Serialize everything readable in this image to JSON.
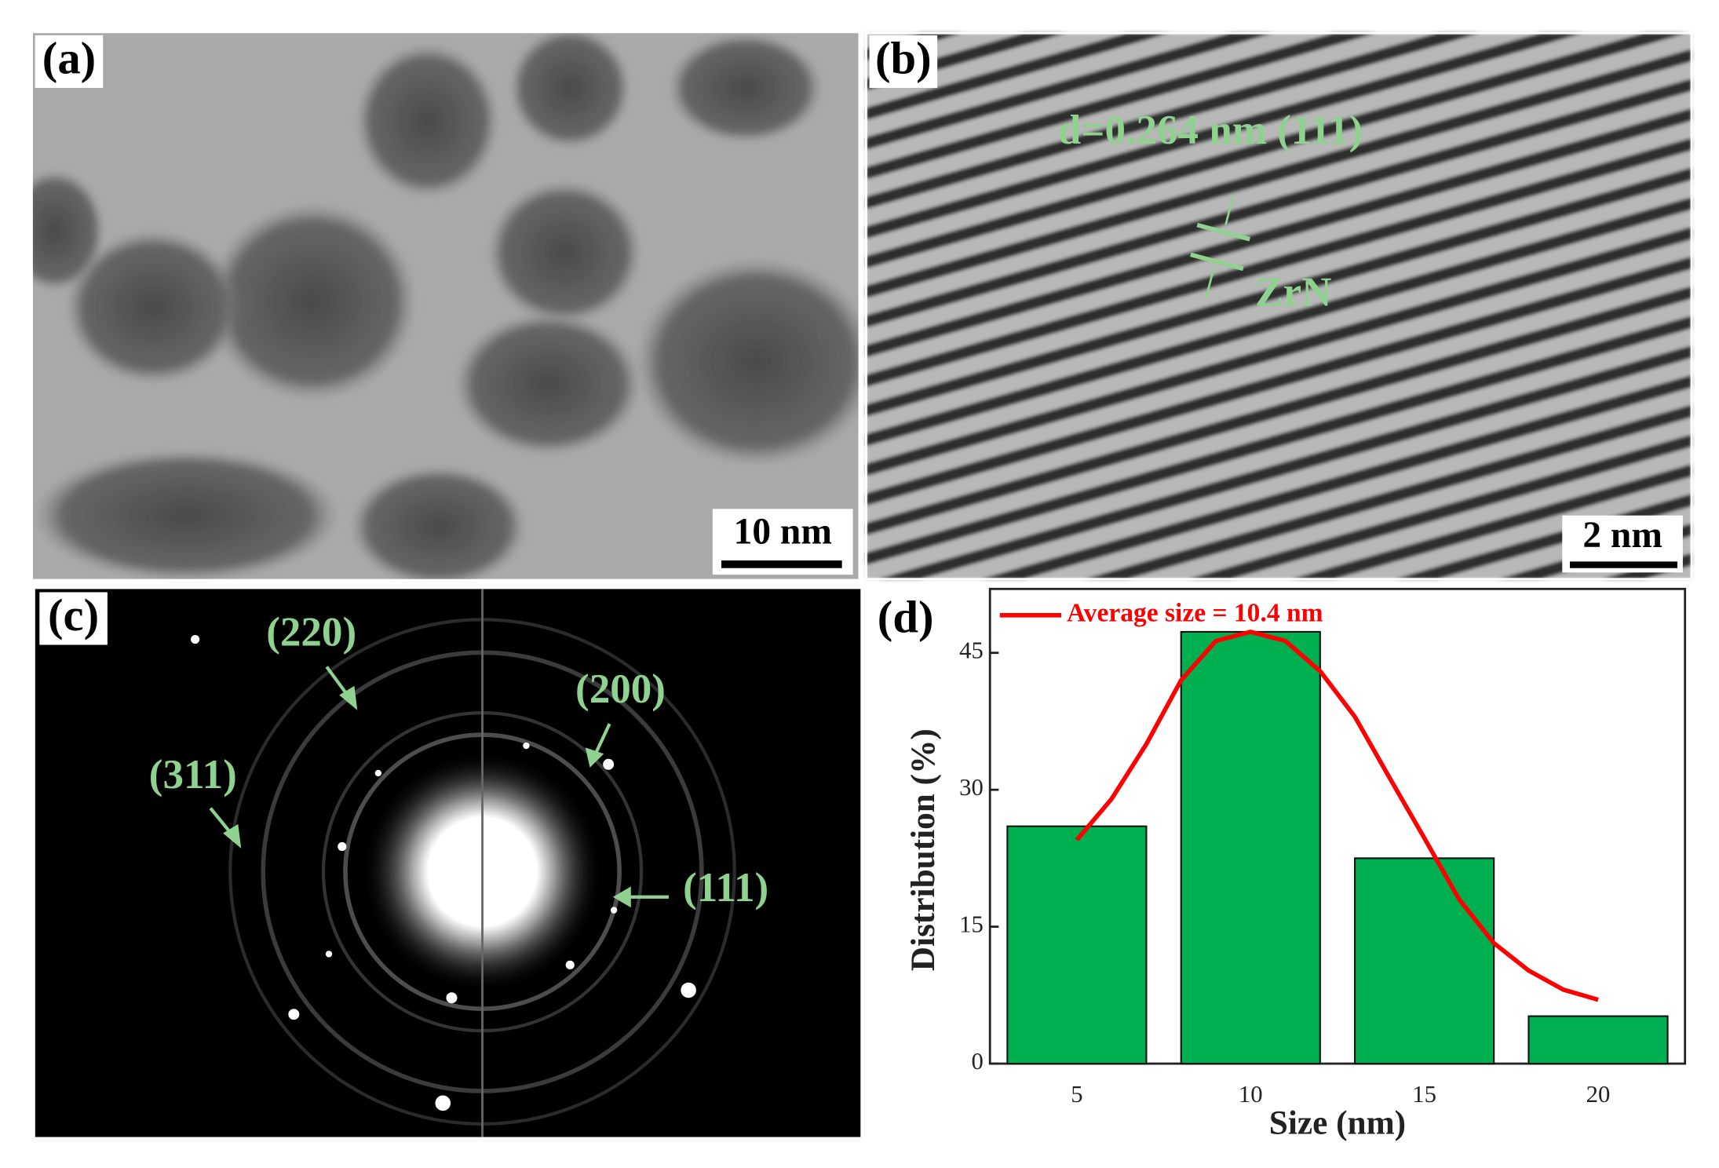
{
  "panels": [
    {
      "label": "(a)",
      "scale_bar": "10 nm"
    },
    {
      "label": "(b)",
      "scale_bar": "2 nm",
      "annotations": [
        "d=0.264 nm (111)",
        "ZrN"
      ]
    },
    {
      "label": "(c)",
      "annotations": [
        "(220)",
        "(200)",
        "(311)",
        "(111)"
      ]
    }
  ],
  "chart_data": {
    "type": "bar",
    "panel_label": "(d)",
    "xlabel": "Size (nm)",
    "ylabel": "Distribution (%)",
    "x": [
      5,
      10,
      15,
      20
    ],
    "values": [
      26,
      47.3,
      22.5,
      5.2
    ],
    "color": "#00b050",
    "fit": {
      "type": "line",
      "name": "Average size = 10.4 nm",
      "color": "#ff0000",
      "x": [
        5,
        6,
        7,
        8,
        9,
        10,
        11,
        12,
        13,
        14,
        15,
        16,
        17,
        18,
        19,
        20
      ],
      "values": [
        24.5,
        29,
        35,
        42,
        46.3,
        47.3,
        46.3,
        43,
        38,
        31.3,
        24.7,
        18,
        13.2,
        10.2,
        8.1,
        7
      ]
    },
    "xlim": [
      2.5,
      22.5
    ],
    "ylim": [
      0,
      52
    ],
    "xticks": [
      5,
      10,
      15,
      20
    ],
    "yticks": [
      0,
      15,
      30,
      45
    ]
  }
}
